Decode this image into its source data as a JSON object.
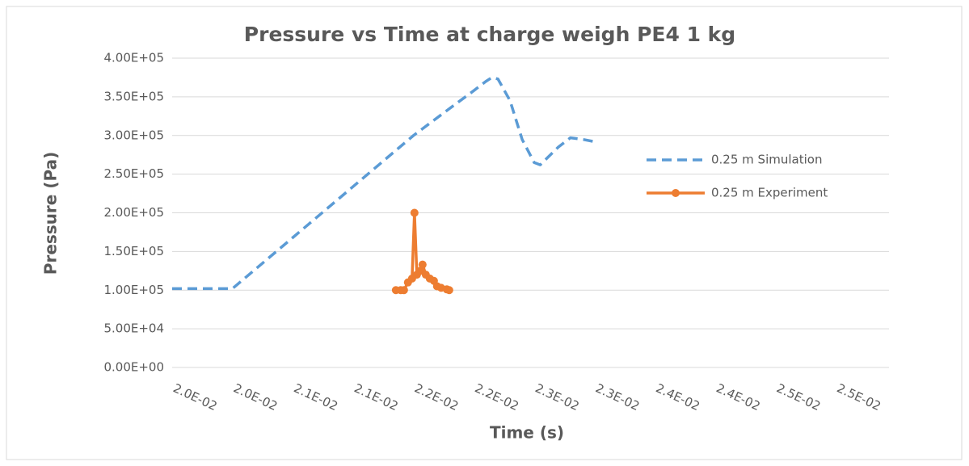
{
  "chart_data": {
    "type": "line",
    "title": "Pressure vs Time at charge weigh PE4 1 kg",
    "x_label": "Time (s)",
    "y_label": "Pressure (Pa)",
    "xlim": [
      0.02,
      0.02594
    ],
    "ylim": [
      0,
      400000
    ],
    "xticks": [
      {
        "value": 0.02,
        "label": "2.0E-02"
      },
      {
        "value": 0.0205,
        "label": "2.0E-02"
      },
      {
        "value": 0.021,
        "label": "2.1E-02"
      },
      {
        "value": 0.0215,
        "label": "2.1E-02"
      },
      {
        "value": 0.022,
        "label": "2.2E-02"
      },
      {
        "value": 0.0225,
        "label": "2.2E-02"
      },
      {
        "value": 0.023,
        "label": "2.3E-02"
      },
      {
        "value": 0.0235,
        "label": "2.3E-02"
      },
      {
        "value": 0.024,
        "label": "2.4E-02"
      },
      {
        "value": 0.0245,
        "label": "2.4E-02"
      },
      {
        "value": 0.025,
        "label": "2.5E-02"
      },
      {
        "value": 0.0255,
        "label": "2.5E-02"
      }
    ],
    "yticks": [
      {
        "value": 0,
        "label": "0.00E+00"
      },
      {
        "value": 50000,
        "label": "5.00E+04"
      },
      {
        "value": 100000,
        "label": "1.00E+05"
      },
      {
        "value": 150000,
        "label": "1.50E+05"
      },
      {
        "value": 200000,
        "label": "2.00E+05"
      },
      {
        "value": 250000,
        "label": "2.50E+05"
      },
      {
        "value": 300000,
        "label": "3.00E+05"
      },
      {
        "value": 350000,
        "label": "3.50E+05"
      },
      {
        "value": 400000,
        "label": "4.00E+05"
      }
    ],
    "grid": true,
    "legend": "right",
    "series": [
      {
        "name": "0.25 m Simulation",
        "color": "#5b9bd5",
        "style": "dashed",
        "marker": "none",
        "x": [
          0.02,
          0.0205,
          0.021,
          0.0215,
          0.022,
          0.0223,
          0.0225,
          0.0226,
          0.02265,
          0.0227,
          0.0228,
          0.0229,
          0.023,
          0.02305,
          0.0232,
          0.0233,
          0.0234,
          0.0235
        ],
        "values": [
          102000,
          102000,
          168000,
          234000,
          300000,
          335000,
          358000,
          370000,
          375000,
          373000,
          345000,
          295000,
          265000,
          262000,
          285000,
          297000,
          295000,
          292000
        ]
      },
      {
        "name": "0.25 m Experiment",
        "color": "#ed7d31",
        "style": "solid",
        "marker": "circle",
        "x": [
          0.021854,
          0.021894,
          0.021921,
          0.021954,
          0.021988,
          0.022008,
          0.022028,
          0.022055,
          0.022075,
          0.022102,
          0.022135,
          0.022169,
          0.022195,
          0.022229,
          0.022276,
          0.022296
        ],
        "values": [
          100000,
          100000,
          100000,
          110000,
          115000,
          200000,
          120000,
          125000,
          133000,
          120000,
          115000,
          112000,
          105000,
          103000,
          101000,
          100000
        ]
      }
    ]
  }
}
